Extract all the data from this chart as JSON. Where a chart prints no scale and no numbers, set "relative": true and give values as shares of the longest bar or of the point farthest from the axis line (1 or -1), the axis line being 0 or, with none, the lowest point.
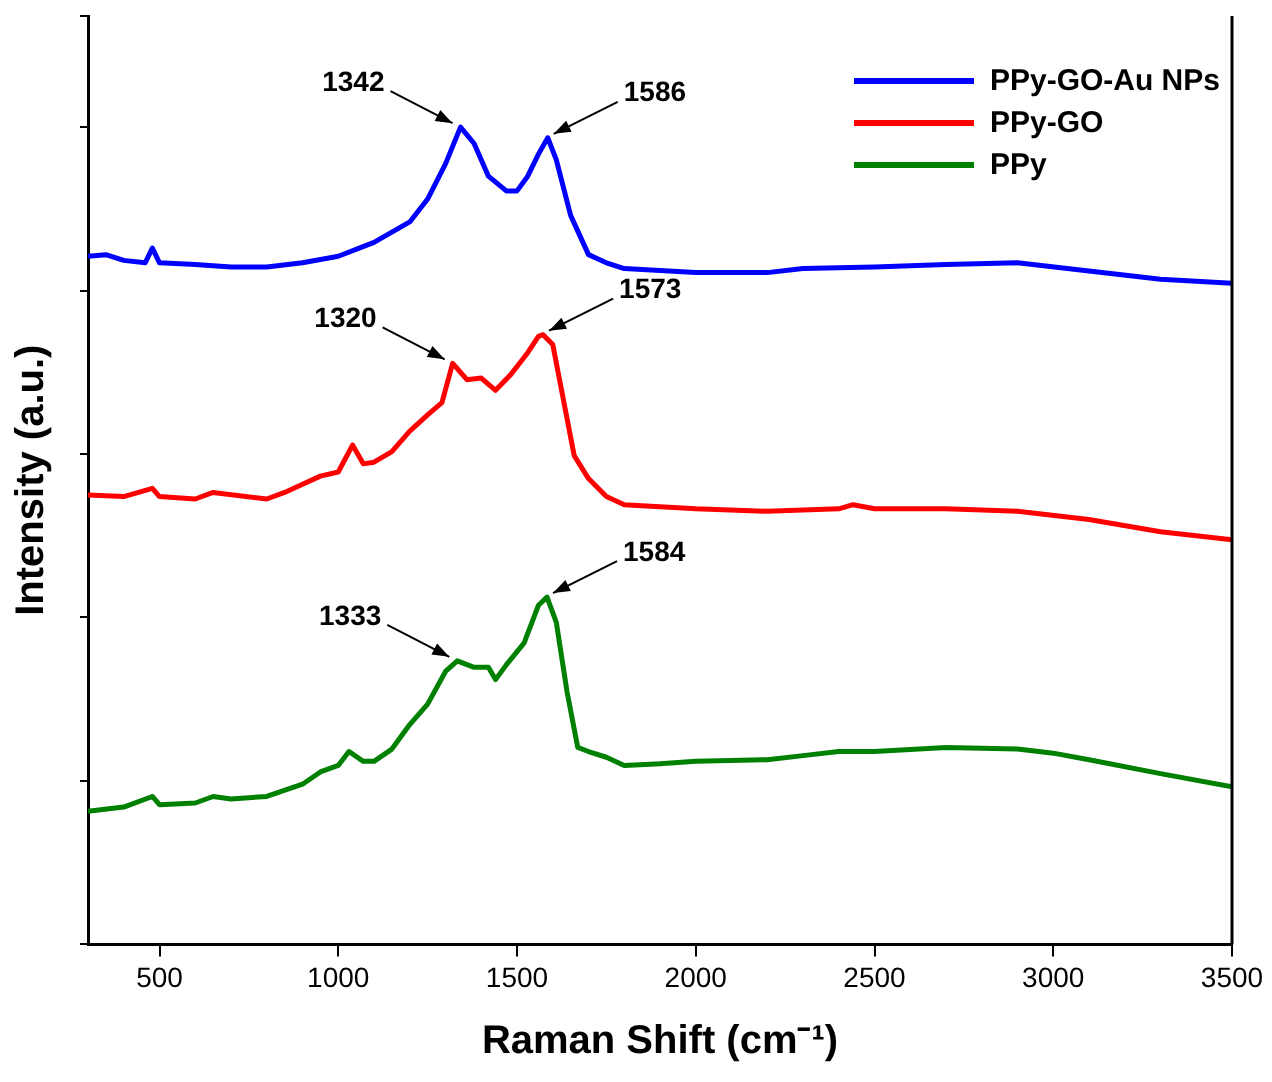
{
  "chart_data": {
    "type": "line",
    "relative": true,
    "xlabel": "Raman Shift (cm⁻¹)",
    "ylabel": "Intensity (a.u.)",
    "xlim": [
      300,
      3500
    ],
    "xticks": [
      500,
      1000,
      1500,
      2000,
      2500,
      3000,
      3500
    ],
    "legend": "top right",
    "grid": false,
    "marker": "none",
    "line_style": "solid",
    "series": [
      {
        "name": "PPy-GO-Au NPs",
        "color": "#0000ff",
        "x": [
          300,
          350,
          400,
          460,
          480,
          500,
          600,
          700,
          800,
          900,
          1000,
          1100,
          1200,
          1250,
          1300,
          1342,
          1380,
          1420,
          1470,
          1500,
          1530,
          1560,
          1586,
          1610,
          1650,
          1700,
          1750,
          1800,
          2000,
          2200,
          2300,
          2500,
          2700,
          2900,
          3100,
          3300,
          3500
        ],
        "values": [
          0.842,
          0.844,
          0.837,
          0.834,
          0.852,
          0.834,
          0.832,
          0.829,
          0.829,
          0.834,
          0.842,
          0.859,
          0.884,
          0.912,
          0.955,
          1,
          0.98,
          0.94,
          0.922,
          0.922,
          0.94,
          0.967,
          0.987,
          0.96,
          0.892,
          0.844,
          0.834,
          0.827,
          0.822,
          0.822,
          0.827,
          0.829,
          0.832,
          0.834,
          0.824,
          0.814,
          0.809
        ]
      },
      {
        "name": "PPy-GO",
        "color": "#ff0000",
        "x": [
          300,
          400,
          480,
          500,
          600,
          650,
          800,
          850,
          900,
          950,
          1000,
          1040,
          1070,
          1100,
          1150,
          1200,
          1250,
          1290,
          1320,
          1360,
          1400,
          1440,
          1480,
          1530,
          1560,
          1573,
          1600,
          1630,
          1660,
          1700,
          1750,
          1800,
          2000,
          2200,
          2400,
          2440,
          2500,
          2700,
          2900,
          3100,
          3300,
          3500
        ],
        "values": [
          0.55,
          0.548,
          0.558,
          0.548,
          0.545,
          0.553,
          0.545,
          0.553,
          0.563,
          0.573,
          0.578,
          0.611,
          0.588,
          0.59,
          0.603,
          0.628,
          0.648,
          0.663,
          0.711,
          0.691,
          0.693,
          0.678,
          0.696,
          0.724,
          0.744,
          0.746,
          0.734,
          0.666,
          0.598,
          0.57,
          0.548,
          0.538,
          0.533,
          0.53,
          0.533,
          0.538,
          0.533,
          0.533,
          0.53,
          0.52,
          0.505,
          0.495
        ]
      },
      {
        "name": "PPy",
        "color": "#008000",
        "x": [
          300,
          400,
          480,
          500,
          600,
          650,
          700,
          800,
          900,
          950,
          1000,
          1030,
          1070,
          1100,
          1150,
          1200,
          1250,
          1300,
          1333,
          1380,
          1420,
          1440,
          1470,
          1520,
          1560,
          1584,
          1610,
          1640,
          1670,
          1700,
          1750,
          1800,
          1900,
          2000,
          2200,
          2300,
          2400,
          2500,
          2700,
          2900,
          3000,
          3100,
          3300,
          3500
        ],
        "values": [
          0.163,
          0.168,
          0.181,
          0.171,
          0.173,
          0.181,
          0.178,
          0.181,
          0.196,
          0.211,
          0.219,
          0.236,
          0.224,
          0.224,
          0.239,
          0.269,
          0.294,
          0.334,
          0.347,
          0.339,
          0.339,
          0.324,
          0.342,
          0.369,
          0.415,
          0.425,
          0.394,
          0.309,
          0.241,
          0.236,
          0.229,
          0.219,
          0.221,
          0.224,
          0.226,
          0.231,
          0.236,
          0.236,
          0.241,
          0.239,
          0.234,
          0.226,
          0.209,
          0.193
        ]
      }
    ],
    "annotations": [
      {
        "text": "1342",
        "x": 1342,
        "y": 1
      },
      {
        "text": "1586",
        "x": 1586,
        "y": 0.987
      },
      {
        "text": "1320",
        "x": 1320,
        "y": 0.711
      },
      {
        "text": "1573",
        "x": 1573,
        "y": 0.746
      },
      {
        "text": "1333",
        "x": 1333,
        "y": 0.347
      },
      {
        "text": "1584",
        "x": 1584,
        "y": 0.425
      }
    ]
  }
}
